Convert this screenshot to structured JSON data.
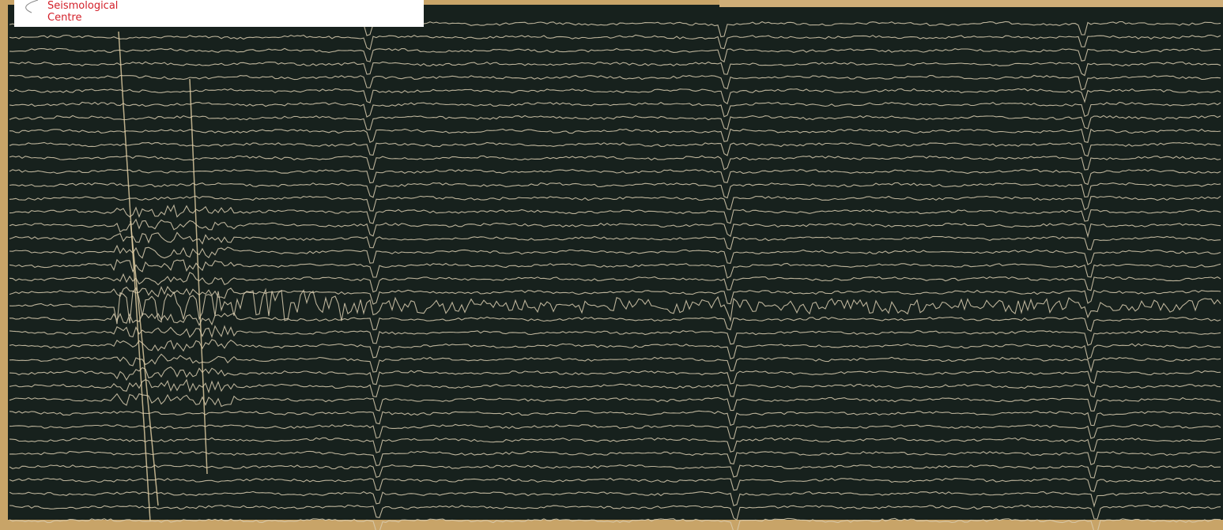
{
  "logo": {
    "line1": "Seismological",
    "line2": "Centre"
  }
}
